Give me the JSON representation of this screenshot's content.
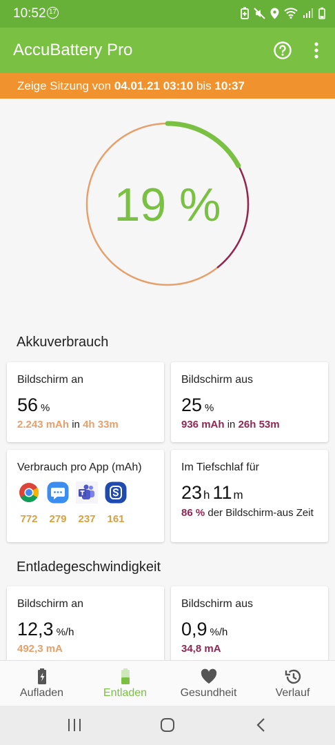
{
  "statusbar": {
    "time": "10:52",
    "notification_count": "17"
  },
  "appbar": {
    "title": "AccuBattery Pro"
  },
  "session": {
    "prefix": "Zeige Sitzung von",
    "start": "04.01.21 03:10",
    "middle": "bis",
    "end": "10:37"
  },
  "gauge": {
    "percent_label": "19 %",
    "level_fraction": 0.19
  },
  "usage": {
    "title": "Akkuverbrauch",
    "screen_on": {
      "title": "Bildschirm an",
      "value": "56",
      "unit": "%",
      "mah": "2.243 mAh",
      "in": "in",
      "duration": "4h 33m"
    },
    "screen_off": {
      "title": "Bildschirm aus",
      "value": "25",
      "unit": "%",
      "mah": "936 mAh",
      "in": "in",
      "duration": "26h 53m"
    },
    "per_app": {
      "title": "Verbrauch pro App (mAh)",
      "apps": [
        {
          "icon": "chrome-icon",
          "value": "772"
        },
        {
          "icon": "messages-icon",
          "value": "279"
        },
        {
          "icon": "teams-icon",
          "value": "237"
        },
        {
          "icon": "samsung-s-icon",
          "value": "161"
        }
      ]
    },
    "deep_sleep": {
      "title": "Im Tiefschlaf für",
      "hours": "23",
      "h_unit": "h",
      "minutes": "11",
      "m_unit": "m",
      "percent": "86 %",
      "desc": "der Bildschirm-aus Zeit"
    }
  },
  "discharge": {
    "title": "Entladegeschwindigkeit",
    "screen_on": {
      "title": "Bildschirm an",
      "value": "12,3",
      "unit": "%/h",
      "ma": "492,3 mA"
    },
    "screen_off": {
      "title": "Bildschirm aus",
      "value": "0,9",
      "unit": "%/h",
      "ma": "34,8 mA"
    }
  },
  "bottom_nav": [
    {
      "label": "Aufladen",
      "icon": "battery-charging-icon"
    },
    {
      "label": "Entladen",
      "icon": "battery-icon",
      "active": true
    },
    {
      "label": "Gesundheit",
      "icon": "heart-icon"
    },
    {
      "label": "Verlauf",
      "icon": "history-icon"
    }
  ],
  "colors": {
    "green": "#7ac143",
    "orange": "#f0922e",
    "peach": "#e6a06c",
    "maroon": "#8f2752"
  }
}
